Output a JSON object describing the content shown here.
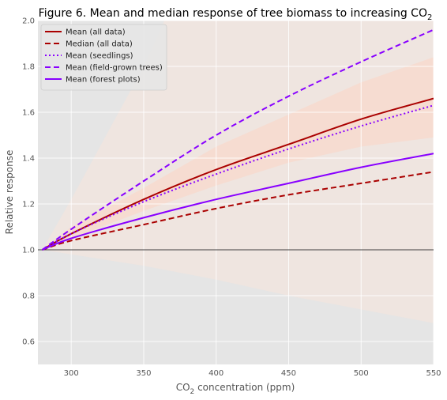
{
  "chart_data": {
    "type": "line",
    "title": "Figure 6. Mean and median response of tree biomass to increasing CO",
    "title_subscript": "2",
    "xlabel": "CO",
    "xlabel_subscript": "2",
    "xlabel_suffix": " concentration (ppm)",
    "ylabel": "Relative response",
    "xlim": [
      277,
      550
    ],
    "ylim": [
      0.5,
      2.0
    ],
    "xticks": [
      300,
      350,
      400,
      450,
      500,
      550
    ],
    "yticks": [
      0.6,
      0.8,
      1.0,
      1.2,
      1.4,
      1.6,
      1.8,
      2.0
    ],
    "grid": true,
    "legend_position": "top-left",
    "reference_line": {
      "y": 1.0,
      "color": "#000000"
    },
    "x": [
      280,
      300,
      350,
      400,
      450,
      500,
      550
    ],
    "bands": [
      {
        "color": "#f9e6dc",
        "opacity": 0.5,
        "lower": [
          1.0,
          0.98,
          0.93,
          0.87,
          0.8,
          0.74,
          0.68
        ],
        "upper": [
          1.0,
          1.22,
          1.8,
          2.5,
          3.2,
          3.9,
          4.6
        ]
      },
      {
        "color": "#fbd6c4",
        "opacity": 0.55,
        "lower": [
          1.0,
          1.05,
          1.17,
          1.28,
          1.38,
          1.45,
          1.49
        ],
        "upper": [
          1.0,
          1.1,
          1.27,
          1.45,
          1.59,
          1.73,
          1.84
        ]
      }
    ],
    "series": [
      {
        "name": "Mean (all data)",
        "color": "#aa0000",
        "dash": "solid",
        "values": [
          1.0,
          1.07,
          1.22,
          1.35,
          1.46,
          1.57,
          1.66
        ]
      },
      {
        "name": "Median (all data)",
        "color": "#aa0000",
        "dash": "dashed",
        "values": [
          1.0,
          1.04,
          1.11,
          1.18,
          1.24,
          1.29,
          1.34
        ]
      },
      {
        "name": "Mean (seedlings)",
        "color": "#8800ff",
        "dash": "dotted",
        "values": [
          1.0,
          1.07,
          1.21,
          1.33,
          1.44,
          1.54,
          1.63
        ]
      },
      {
        "name": "Mean (field-grown trees)",
        "color": "#8800ff",
        "dash": "dashed",
        "values": [
          1.0,
          1.09,
          1.3,
          1.5,
          1.67,
          1.82,
          1.96
        ]
      },
      {
        "name": "Mean (forest plots)",
        "color": "#8800ff",
        "dash": "solid",
        "values": [
          1.0,
          1.05,
          1.14,
          1.22,
          1.29,
          1.36,
          1.42
        ]
      }
    ]
  }
}
